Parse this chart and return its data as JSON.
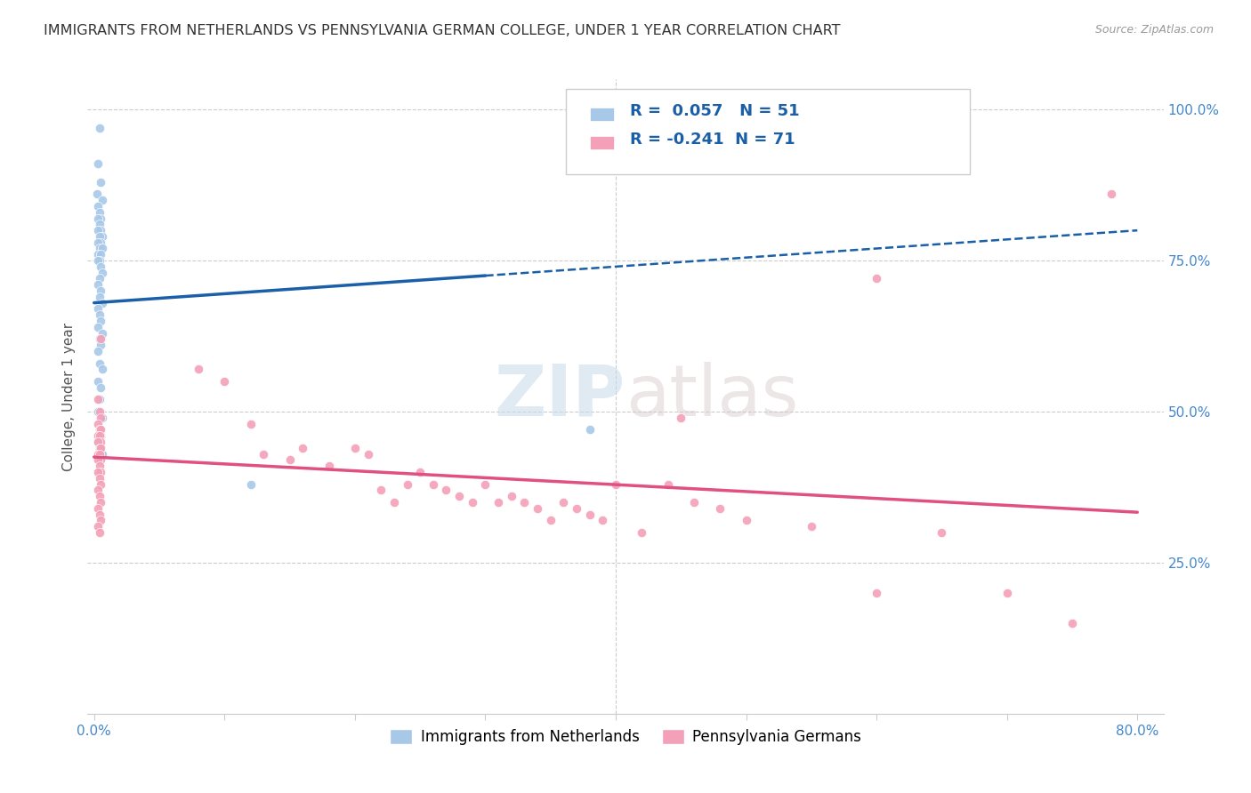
{
  "title": "IMMIGRANTS FROM NETHERLANDS VS PENNSYLVANIA GERMAN COLLEGE, UNDER 1 YEAR CORRELATION CHART",
  "source": "Source: ZipAtlas.com",
  "ylabel": "College, Under 1 year",
  "legend_label1": "Immigrants from Netherlands",
  "legend_label2": "Pennsylvania Germans",
  "R1": 0.057,
  "N1": 51,
  "R2": -0.241,
  "N2": 71,
  "color1": "#a8c8e8",
  "color2": "#f4a0b8",
  "line_color1": "#1a5fa8",
  "line_color2": "#e05080",
  "watermark_zip": "ZIP",
  "watermark_atlas": "atlas",
  "background_color": "#ffffff",
  "title_fontsize": 11.5,
  "scatter_size": 55,
  "blue_x": [
    0.004,
    0.003,
    0.005,
    0.002,
    0.006,
    0.003,
    0.004,
    0.005,
    0.003,
    0.004,
    0.005,
    0.003,
    0.006,
    0.004,
    0.005,
    0.003,
    0.004,
    0.006,
    0.003,
    0.005,
    0.004,
    0.003,
    0.005,
    0.006,
    0.004,
    0.003,
    0.005,
    0.004,
    0.006,
    0.003,
    0.004,
    0.005,
    0.003,
    0.006,
    0.004,
    0.005,
    0.003,
    0.004,
    0.006,
    0.003,
    0.005,
    0.004,
    0.003,
    0.006,
    0.004,
    0.005,
    0.003,
    0.004,
    0.006,
    0.38,
    0.12
  ],
  "blue_y": [
    0.97,
    0.91,
    0.88,
    0.86,
    0.85,
    0.84,
    0.83,
    0.82,
    0.82,
    0.81,
    0.8,
    0.8,
    0.79,
    0.79,
    0.78,
    0.78,
    0.77,
    0.77,
    0.76,
    0.76,
    0.75,
    0.75,
    0.74,
    0.73,
    0.72,
    0.71,
    0.7,
    0.69,
    0.68,
    0.67,
    0.66,
    0.65,
    0.64,
    0.63,
    0.62,
    0.61,
    0.6,
    0.58,
    0.57,
    0.55,
    0.54,
    0.52,
    0.5,
    0.49,
    0.47,
    0.46,
    0.45,
    0.44,
    0.43,
    0.47,
    0.38
  ],
  "pink_x": [
    0.003,
    0.004,
    0.005,
    0.003,
    0.004,
    0.005,
    0.003,
    0.004,
    0.005,
    0.003,
    0.004,
    0.005,
    0.003,
    0.004,
    0.005,
    0.003,
    0.004,
    0.005,
    0.003,
    0.004,
    0.005,
    0.003,
    0.004,
    0.005,
    0.003,
    0.004,
    0.005,
    0.003,
    0.004,
    0.005,
    0.08,
    0.1,
    0.12,
    0.13,
    0.15,
    0.16,
    0.18,
    0.2,
    0.21,
    0.22,
    0.23,
    0.24,
    0.25,
    0.26,
    0.27,
    0.28,
    0.29,
    0.3,
    0.31,
    0.32,
    0.33,
    0.34,
    0.35,
    0.36,
    0.37,
    0.38,
    0.39,
    0.4,
    0.42,
    0.44,
    0.46,
    0.48,
    0.5,
    0.55,
    0.6,
    0.65,
    0.7,
    0.75,
    0.78,
    0.6,
    0.45
  ],
  "pink_y": [
    0.52,
    0.5,
    0.49,
    0.48,
    0.47,
    0.47,
    0.46,
    0.46,
    0.45,
    0.45,
    0.44,
    0.44,
    0.43,
    0.43,
    0.42,
    0.42,
    0.41,
    0.4,
    0.4,
    0.39,
    0.38,
    0.37,
    0.36,
    0.35,
    0.34,
    0.33,
    0.32,
    0.31,
    0.3,
    0.62,
    0.57,
    0.55,
    0.48,
    0.43,
    0.42,
    0.44,
    0.41,
    0.44,
    0.43,
    0.37,
    0.35,
    0.38,
    0.4,
    0.38,
    0.37,
    0.36,
    0.35,
    0.38,
    0.35,
    0.36,
    0.35,
    0.34,
    0.32,
    0.35,
    0.34,
    0.33,
    0.32,
    0.38,
    0.3,
    0.38,
    0.35,
    0.34,
    0.32,
    0.31,
    0.2,
    0.3,
    0.2,
    0.15,
    0.86,
    0.72,
    0.49
  ]
}
